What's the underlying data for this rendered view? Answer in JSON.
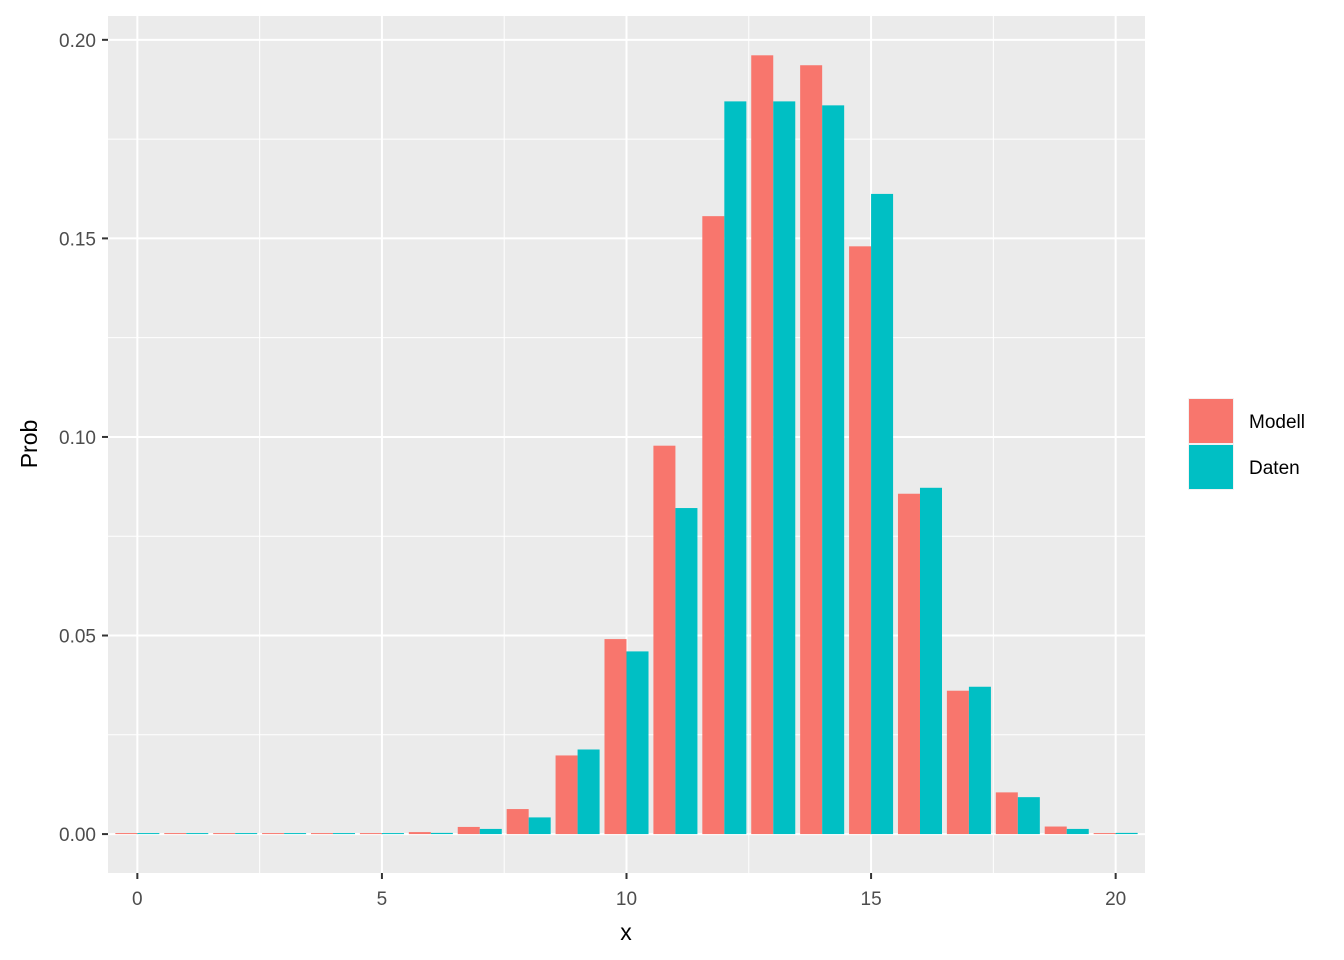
{
  "chart_data": {
    "type": "bar",
    "title": "",
    "xlabel": "x",
    "ylabel": "Prob",
    "x": [
      0,
      1,
      2,
      3,
      4,
      5,
      6,
      7,
      8,
      9,
      10,
      11,
      12,
      13,
      14,
      15,
      16,
      17,
      18,
      19,
      20
    ],
    "xlim": [
      -0.6,
      20.6
    ],
    "ylim": [
      -0.0098,
      0.206
    ],
    "x_ticks": [
      0,
      5,
      10,
      15,
      20
    ],
    "x_tick_labels": [
      "0",
      "5",
      "10",
      "15",
      "20"
    ],
    "y_ticks": [
      0.0,
      0.05,
      0.1,
      0.15,
      0.2
    ],
    "y_tick_labels": [
      "0.00",
      "0.05",
      "0.10",
      "0.15",
      "0.20"
    ],
    "grid": true,
    "legend_position": "right",
    "series": [
      {
        "name": "Modell",
        "color": "#F8766D",
        "values": [
          0.0,
          0.0,
          0.0,
          0.0,
          0.0,
          0.0,
          0.0005,
          0.0018,
          0.0063,
          0.0198,
          0.0491,
          0.0978,
          0.1556,
          0.1961,
          0.1936,
          0.148,
          0.0857,
          0.0361,
          0.0105,
          0.0019,
          0.0002
        ]
      },
      {
        "name": "Daten",
        "color": "#00BFC4",
        "values": [
          0.0,
          0.0,
          0.0,
          0.0,
          0.0,
          0.0,
          0.0003,
          0.0013,
          0.0042,
          0.0213,
          0.046,
          0.0821,
          0.1845,
          0.1845,
          0.1835,
          0.1612,
          0.0872,
          0.0371,
          0.0093,
          0.0013,
          0.0003
        ]
      }
    ]
  }
}
